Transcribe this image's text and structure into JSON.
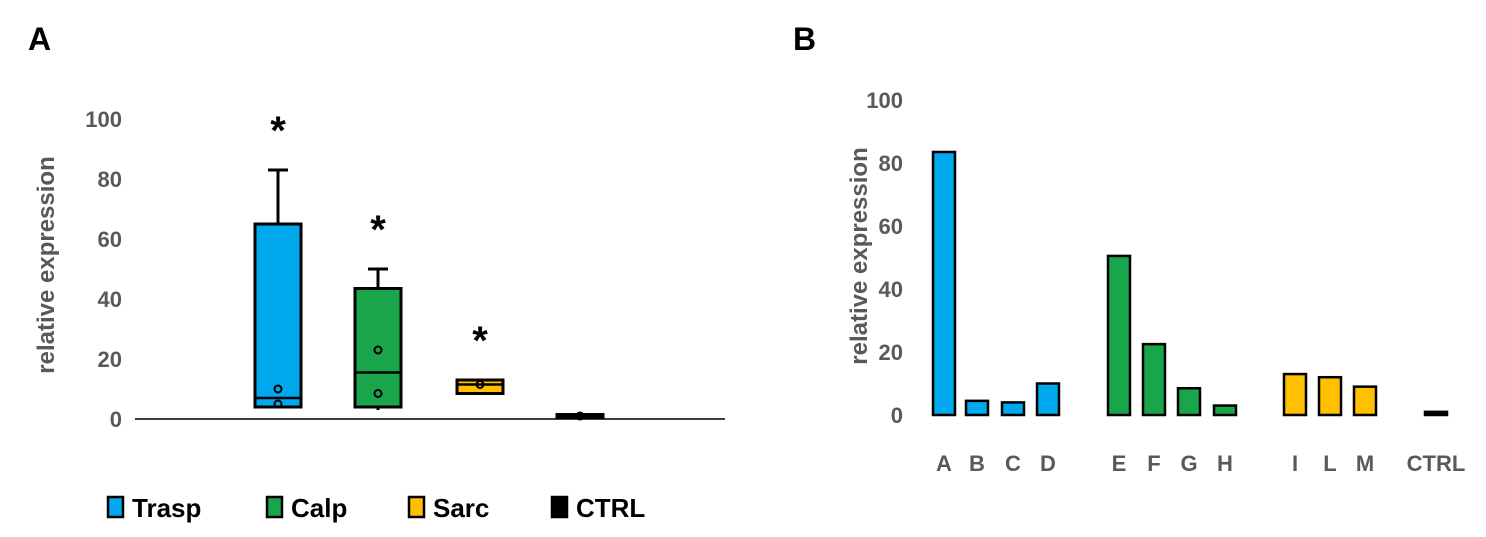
{
  "colors": {
    "Trasp": "#00A8EE",
    "Calp": "#19A64A",
    "Sarc": "#FFC000",
    "CTRL": "#000000",
    "tick_text": "#595959"
  },
  "chart_data": [
    {
      "panel": "A",
      "type": "box",
      "ylabel": "relative expression",
      "ylim": [
        0,
        100
      ],
      "yticks": [
        0,
        20,
        40,
        60,
        80,
        100
      ],
      "legend": {
        "placement": "bottom",
        "entries": [
          "Trasp",
          "Calp",
          "Sarc",
          "CTRL"
        ]
      },
      "series": [
        {
          "name": "Trasp",
          "color_key": "Trasp",
          "min": 4,
          "q1": 4,
          "median": 7,
          "q3": 65,
          "max": 83,
          "points": [
            10,
            5
          ],
          "annotation": "*"
        },
        {
          "name": "Calp",
          "color_key": "Calp",
          "min": 3,
          "q1": 4,
          "median": 15.5,
          "q3": 43.5,
          "max": 50,
          "points": [
            23,
            8.5
          ],
          "annotation": "*"
        },
        {
          "name": "Sarc",
          "color_key": "Sarc",
          "min": 8.5,
          "q1": 8.5,
          "median": 11.5,
          "q3": 13,
          "max": 13,
          "points": [
            11.5
          ],
          "annotation": "*"
        },
        {
          "name": "CTRL",
          "color_key": "CTRL",
          "min": 0.5,
          "q1": 0.5,
          "median": 1,
          "q3": 1.5,
          "max": 1.5,
          "points": [
            1
          ],
          "annotation": ""
        }
      ]
    },
    {
      "panel": "B",
      "type": "bar",
      "ylabel": "relative expression",
      "ylim": [
        0,
        100
      ],
      "yticks": [
        0,
        20,
        40,
        60,
        80,
        100
      ],
      "grid": false,
      "categories": [
        "A",
        "B",
        "C",
        "D",
        "E",
        "F",
        "G",
        "H",
        "I",
        "L",
        "M",
        "CTRL"
      ],
      "values": [
        83.5,
        4.5,
        4,
        10,
        50.5,
        22.5,
        8.5,
        3,
        13,
        12,
        9,
        1
      ],
      "groups": [
        "Trasp",
        "Trasp",
        "Trasp",
        "Trasp",
        "Calp",
        "Calp",
        "Calp",
        "Calp",
        "Sarc",
        "Sarc",
        "Sarc",
        "CTRL"
      ]
    }
  ]
}
